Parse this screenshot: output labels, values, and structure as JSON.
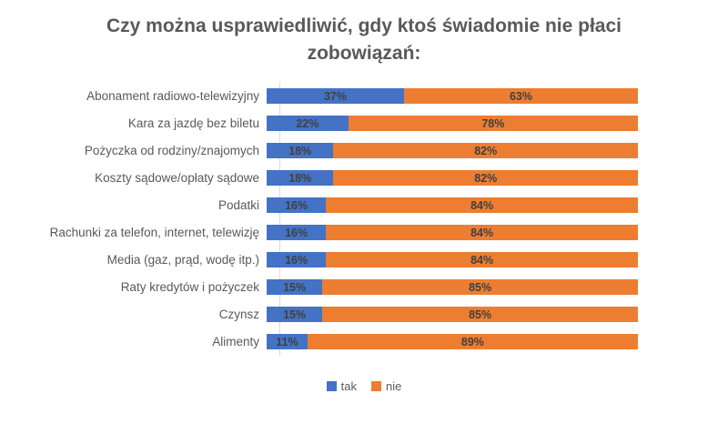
{
  "title": "Czy można usprawiedliwić, gdy ktoś świadomie nie płaci zobowiązań:",
  "colors": {
    "tak": "#4472C4",
    "nie": "#ED7D31",
    "title_text": "#595959",
    "category_text": "#595959",
    "data_label_text": "#404040",
    "axis_line": "#D9D9D9",
    "background": "#FFFFFF"
  },
  "legend": {
    "position": "bottom",
    "items": [
      {
        "label": "tak",
        "color": "#4472C4"
      },
      {
        "label": "nie",
        "color": "#ED7D31"
      }
    ]
  },
  "chart_data": {
    "type": "bar",
    "orientation": "horizontal",
    "stacked": true,
    "stacked_total": 100,
    "grid": false,
    "data_labels": "percent",
    "legend_position": "bottom",
    "xlim": [
      0,
      100
    ],
    "title": "Czy można usprawiedliwić, gdy ktoś świadomie nie płaci zobowiązań:",
    "xlabel": "",
    "ylabel": "",
    "categories": [
      "Abonament radiowo-telewizyjny",
      "Kara za jazdę bez biletu",
      "Pożyczka od rodziny/znajomych",
      "Koszty sądowe/opłaty sądowe",
      "Podatki",
      "Rachunki za telefon, internet, telewizję",
      "Media (gaz, prąd, wodę itp.)",
      "Raty kredytów i pożyczek",
      "Czynsz",
      "Alimenty"
    ],
    "series": [
      {
        "name": "tak",
        "color": "#4472C4",
        "values": [
          37,
          22,
          18,
          18,
          16,
          16,
          16,
          15,
          15,
          11
        ]
      },
      {
        "name": "nie",
        "color": "#ED7D31",
        "values": [
          63,
          78,
          82,
          82,
          84,
          84,
          84,
          85,
          85,
          89
        ]
      }
    ]
  }
}
